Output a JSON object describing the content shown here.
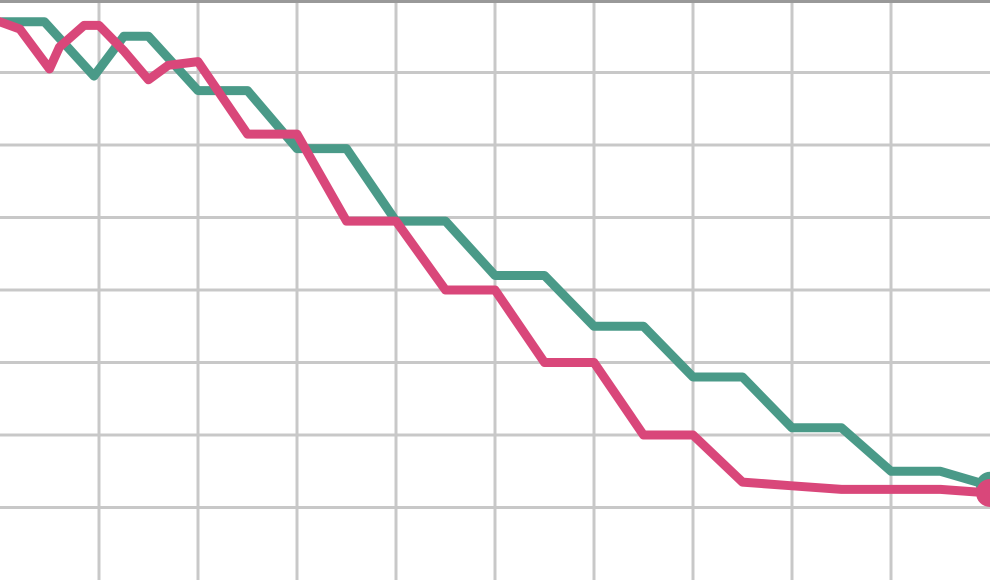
{
  "chart_data": {
    "type": "line",
    "title": "",
    "xlabel": "",
    "ylabel": "",
    "xlim": [
      0,
      20
    ],
    "ylim": [
      0,
      8
    ],
    "grid": true,
    "legend": "none",
    "series": [
      {
        "color": "#4a9a88",
        "end_marker": true,
        "points": [
          [
            0,
            7.7
          ],
          [
            0.9,
            7.7
          ],
          [
            1.9,
            6.95
          ],
          [
            2.5,
            7.5
          ],
          [
            3.0,
            7.5
          ],
          [
            4.0,
            6.75
          ],
          [
            5.0,
            6.75
          ],
          [
            6.0,
            5.95
          ],
          [
            7.0,
            5.95
          ],
          [
            8.0,
            4.95
          ],
          [
            9.0,
            4.95
          ],
          [
            10.0,
            4.2
          ],
          [
            11.0,
            4.2
          ],
          [
            12.0,
            3.5
          ],
          [
            13.0,
            3.5
          ],
          [
            14.0,
            2.8
          ],
          [
            15.0,
            2.8
          ],
          [
            16.0,
            2.1
          ],
          [
            17.0,
            2.1
          ],
          [
            18.0,
            1.5
          ],
          [
            19.0,
            1.5
          ],
          [
            20.0,
            1.3
          ]
        ]
      },
      {
        "color": "#d9477a",
        "end_marker": true,
        "points": [
          [
            0,
            7.7
          ],
          [
            0.4,
            7.6
          ],
          [
            1.0,
            7.05
          ],
          [
            1.2,
            7.35
          ],
          [
            1.7,
            7.65
          ],
          [
            2.0,
            7.65
          ],
          [
            2.5,
            7.3
          ],
          [
            3.0,
            6.9
          ],
          [
            3.4,
            7.1
          ],
          [
            4.0,
            7.15
          ],
          [
            5.0,
            6.15
          ],
          [
            6.0,
            6.15
          ],
          [
            7.0,
            4.95
          ],
          [
            8.0,
            4.95
          ],
          [
            9.0,
            4.0
          ],
          [
            10.0,
            4.0
          ],
          [
            11.0,
            3.0
          ],
          [
            12.0,
            3.0
          ],
          [
            13.0,
            2.0
          ],
          [
            14.0,
            2.0
          ],
          [
            15.0,
            1.35
          ],
          [
            16.0,
            1.3
          ],
          [
            17.0,
            1.25
          ],
          [
            18.0,
            1.25
          ],
          [
            19.0,
            1.25
          ],
          [
            20.0,
            1.2
          ]
        ]
      }
    ]
  }
}
